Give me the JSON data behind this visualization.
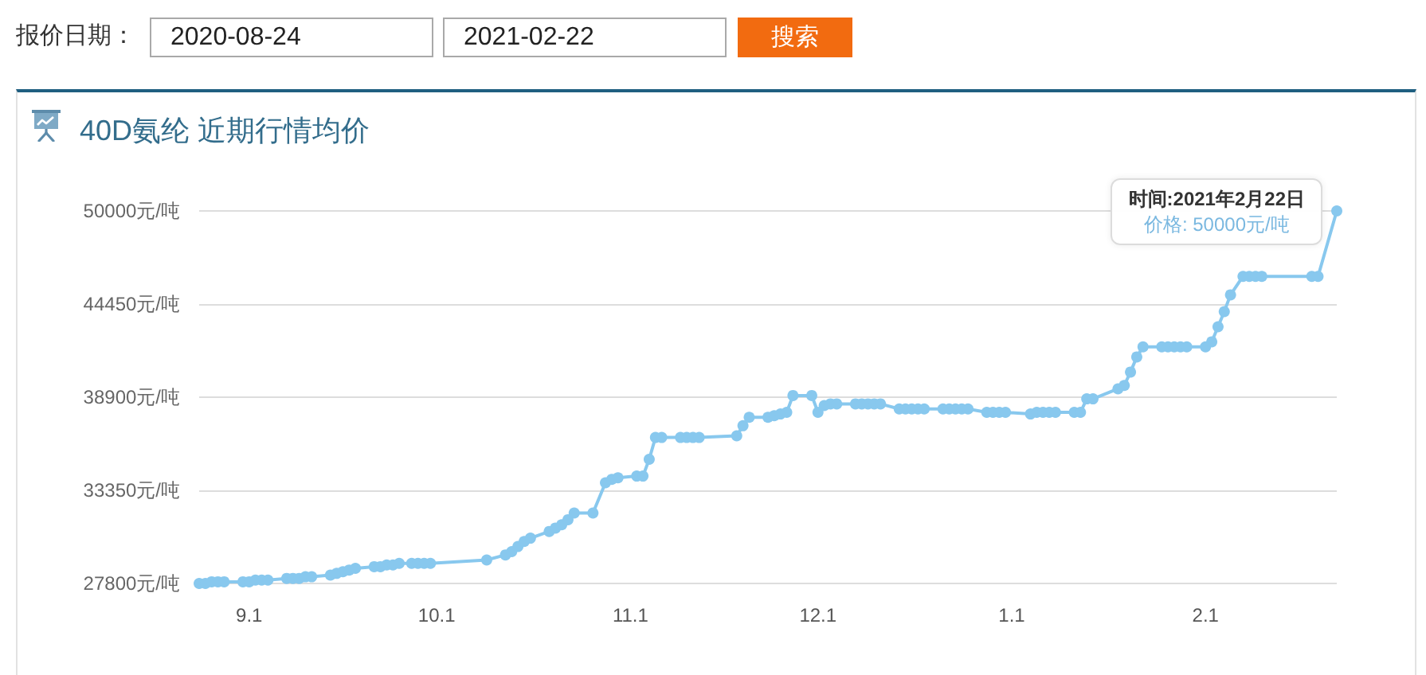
{
  "chart_data": {
    "type": "line",
    "title": "40D氨纶 近期行情均价",
    "annotations": [
      "报价日期：",
      "2020-08-24",
      "2021-02-22",
      "搜索",
      {
        "text": "时间:2021年2月22日",
        "x": "2021-02-22",
        "y": 50000
      },
      {
        "text": "价格: 50000元/吨",
        "x": "2021-02-22",
        "y": 50000
      }
    ],
    "x": [
      "2020-08-24",
      "2020-08-25",
      "2020-08-26",
      "2020-08-27",
      "2020-08-28",
      "2020-08-31",
      "2020-09-01",
      "2020-09-02",
      "2020-09-03",
      "2020-09-04",
      "2020-09-07",
      "2020-09-08",
      "2020-09-09",
      "2020-09-10",
      "2020-09-11",
      "2020-09-14",
      "2020-09-15",
      "2020-09-16",
      "2020-09-17",
      "2020-09-18",
      "2020-09-21",
      "2020-09-22",
      "2020-09-23",
      "2020-09-24",
      "2020-09-25",
      "2020-09-27",
      "2020-09-28",
      "2020-09-29",
      "2020-09-30",
      "2020-10-09",
      "2020-10-12",
      "2020-10-13",
      "2020-10-14",
      "2020-10-15",
      "2020-10-16",
      "2020-10-19",
      "2020-10-20",
      "2020-10-21",
      "2020-10-22",
      "2020-10-23",
      "2020-10-26",
      "2020-10-28",
      "2020-10-29",
      "2020-10-30",
      "2020-11-02",
      "2020-11-03",
      "2020-11-04",
      "2020-11-05",
      "2020-11-06",
      "2020-11-09",
      "2020-11-10",
      "2020-11-11",
      "2020-11-12",
      "2020-11-18",
      "2020-11-19",
      "2020-11-20",
      "2020-11-23",
      "2020-11-24",
      "2020-11-25",
      "2020-11-26",
      "2020-11-27",
      "2020-11-30",
      "2020-12-01",
      "2020-12-02",
      "2020-12-03",
      "2020-12-04",
      "2020-12-07",
      "2020-12-08",
      "2020-12-09",
      "2020-12-10",
      "2020-12-11",
      "2020-12-14",
      "2020-12-15",
      "2020-12-16",
      "2020-12-17",
      "2020-12-18",
      "2020-12-21",
      "2020-12-22",
      "2020-12-23",
      "2020-12-24",
      "2020-12-25",
      "2020-12-28",
      "2020-12-29",
      "2020-12-30",
      "2020-12-31",
      "2021-01-04",
      "2021-01-05",
      "2021-01-06",
      "2021-01-07",
      "2021-01-08",
      "2021-01-11",
      "2021-01-12",
      "2021-01-13",
      "2021-01-14",
      "2021-01-18",
      "2021-01-19",
      "2021-01-20",
      "2021-01-21",
      "2021-01-22",
      "2021-01-25",
      "2021-01-26",
      "2021-01-27",
      "2021-01-28",
      "2021-01-29",
      "2021-02-01",
      "2021-02-02",
      "2021-02-03",
      "2021-02-04",
      "2021-02-05",
      "2021-02-07",
      "2021-02-08",
      "2021-02-09",
      "2021-02-10",
      "2021-02-18",
      "2021-02-19",
      "2021-02-22"
    ],
    "values": [
      27800,
      27800,
      27900,
      27900,
      27900,
      27900,
      27900,
      28000,
      28000,
      28000,
      28100,
      28100,
      28100,
      28200,
      28200,
      28300,
      28400,
      28500,
      28600,
      28700,
      28800,
      28800,
      28900,
      28900,
      29000,
      29000,
      29000,
      29000,
      29000,
      29200,
      29500,
      29700,
      30000,
      30300,
      30500,
      30900,
      31100,
      31300,
      31600,
      32000,
      32000,
      33800,
      34000,
      34100,
      34200,
      34200,
      35200,
      36500,
      36500,
      36500,
      36500,
      36500,
      36500,
      36600,
      37200,
      37700,
      37700,
      37800,
      37900,
      38000,
      39000,
      39000,
      38000,
      38400,
      38500,
      38500,
      38500,
      38500,
      38500,
      38500,
      38500,
      38200,
      38200,
      38200,
      38200,
      38200,
      38200,
      38200,
      38200,
      38200,
      38200,
      38000,
      38000,
      38000,
      38000,
      37900,
      38000,
      38000,
      38000,
      38000,
      38000,
      38000,
      38800,
      38800,
      39400,
      39600,
      40400,
      41300,
      41900,
      41900,
      41900,
      41900,
      41900,
      41900,
      41900,
      42200,
      43100,
      44000,
      45000,
      46100,
      46100,
      46100,
      46100,
      46100,
      46100,
      50000
    ],
    "color": "#88c8ee",
    "xlim": [
      "2020-08-24",
      "2021-02-22"
    ],
    "xticks": [
      {
        "value": "2020-09-01",
        "label": "9.1"
      },
      {
        "value": "2020-10-01",
        "label": "10.1"
      },
      {
        "value": "2020-11-01",
        "label": "11.1"
      },
      {
        "value": "2020-12-01",
        "label": "12.1"
      },
      {
        "value": "2021-01-01",
        "label": "1.1"
      },
      {
        "value": "2021-02-01",
        "label": "2.1"
      }
    ],
    "ylim": [
      27800,
      50000
    ],
    "yticks": [
      {
        "value": 27800,
        "label": "27800元/吨"
      },
      {
        "value": 33350,
        "label": "33350元/吨"
      },
      {
        "value": 38900,
        "label": "38900元/吨"
      },
      {
        "value": 44450,
        "label": "44450元/吨"
      },
      {
        "value": 50000,
        "label": "50000元/吨"
      }
    ],
    "grid": "y",
    "marker": "circle"
  }
}
